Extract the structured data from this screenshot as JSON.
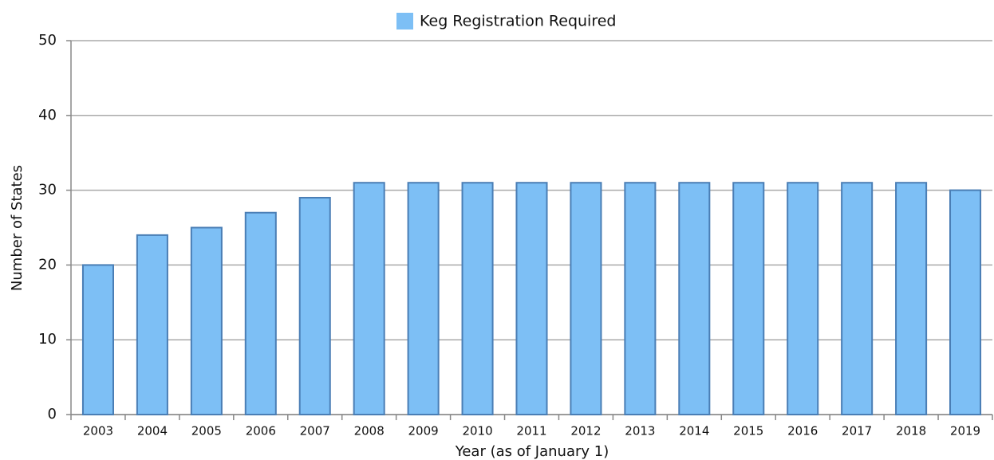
{
  "chart_data": {
    "type": "bar",
    "legend": "Keg Registration Required",
    "x_label": "Year (as of January 1)",
    "y_label": "Number of States",
    "categories": [
      "2003",
      "2004",
      "2005",
      "2006",
      "2007",
      "2008",
      "2009",
      "2010",
      "2011",
      "2012",
      "2013",
      "2014",
      "2015",
      "2016",
      "2017",
      "2018",
      "2019"
    ],
    "values": [
      20,
      24,
      25,
      27,
      29,
      31,
      31,
      31,
      31,
      31,
      31,
      31,
      31,
      31,
      31,
      31,
      30
    ],
    "color": "#7dbff5",
    "ylim": [
      0,
      50
    ],
    "yticks": [
      0,
      10,
      20,
      30,
      40,
      50
    ],
    "grid": true
  }
}
